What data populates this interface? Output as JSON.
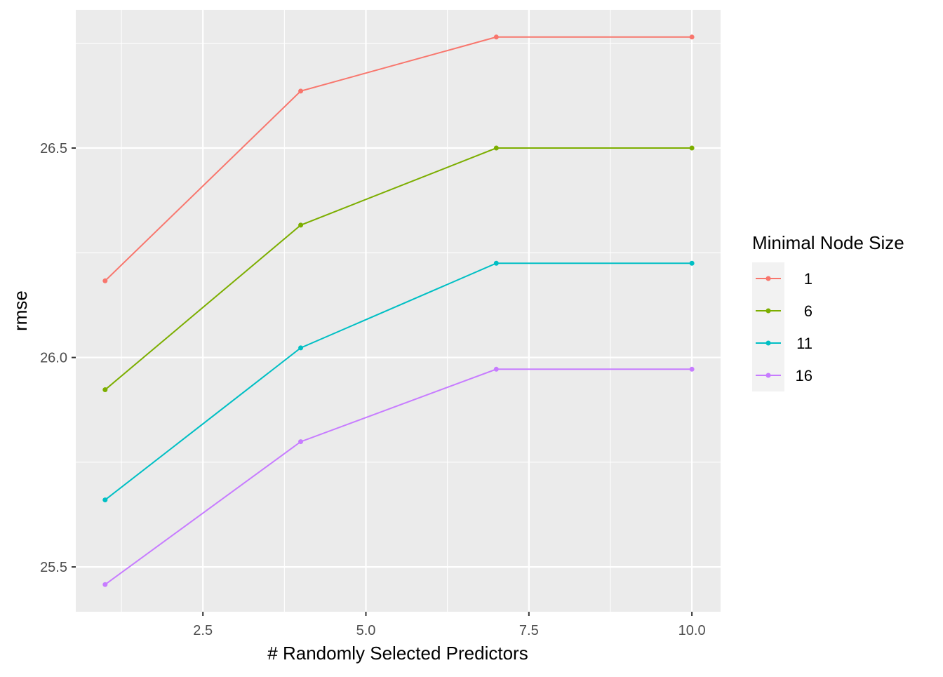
{
  "chart_data": {
    "type": "line",
    "title": "",
    "xlabel": "# Randomly Selected Predictors",
    "ylabel": "rmse",
    "x": [
      1,
      4,
      7,
      10
    ],
    "xlim": [
      0.55,
      10.44
    ],
    "ylim": [
      25.393,
      26.83
    ],
    "xticks": [
      2.5,
      5.0,
      7.5,
      10.0
    ],
    "xtick_labels": [
      "2.5",
      "5.0",
      "7.5",
      "10.0"
    ],
    "yticks": [
      25.5,
      26.0,
      26.5
    ],
    "ytick_labels": [
      "25.5",
      "26.0",
      "26.5"
    ],
    "grid": true,
    "legend_title": "Minimal Node Size",
    "legend_position": "right",
    "series": [
      {
        "name": "1",
        "color": "#F8766D",
        "values": [
          26.183,
          26.636,
          26.765,
          26.765
        ]
      },
      {
        "name": "6",
        "color": "#7CAE00",
        "values": [
          25.923,
          26.316,
          26.5,
          26.5
        ]
      },
      {
        "name": "11",
        "color": "#00BFC4",
        "values": [
          25.66,
          26.023,
          26.225,
          26.225
        ]
      },
      {
        "name": "16",
        "color": "#C77CFF",
        "values": [
          25.458,
          25.799,
          25.972,
          25.972
        ]
      }
    ]
  }
}
